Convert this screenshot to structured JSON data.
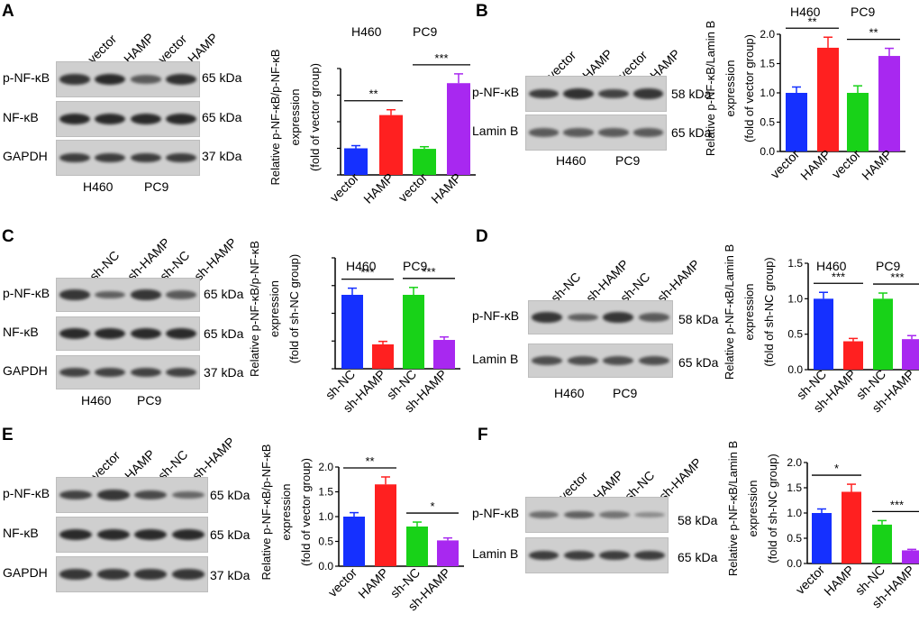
{
  "colors": {
    "blue": "#1530ff",
    "red": "#ff2020",
    "green": "#18d218",
    "purple": "#a828f0"
  },
  "panels": [
    {
      "id": "A",
      "lanes": [
        "vector",
        "HAMP",
        "vector",
        "HAMP"
      ],
      "rows": [
        {
          "label": "p-NF-κB",
          "kda": "65 kDa",
          "intensity": [
            0.9,
            1.0,
            0.6,
            0.95
          ]
        },
        {
          "label": "NF-κB",
          "kda": "65 kDa",
          "intensity": [
            1.0,
            1.0,
            1.0,
            1.0
          ]
        },
        {
          "label": "GAPDH",
          "kda": "37 kDa",
          "intensity": [
            0.85,
            0.85,
            0.85,
            0.85
          ]
        }
      ],
      "cells": [
        "H460",
        "PC9"
      ]
    },
    {
      "id": "B",
      "lanes": [
        "vector",
        "HAMP",
        "vector",
        "HAMP"
      ],
      "rows": [
        {
          "label": "p-NF-κB",
          "kda": "58 kDa",
          "intensity": [
            0.85,
            0.95,
            0.8,
            0.9
          ]
        },
        {
          "label": "Lamin B",
          "kda": "65 kDa",
          "intensity": [
            0.6,
            0.6,
            0.6,
            0.6
          ]
        }
      ],
      "cells": [
        "H460",
        "PC9"
      ]
    },
    {
      "id": "C",
      "lanes": [
        "sh-NC",
        "sh-HAMP",
        "sh-NC",
        "sh-HAMP"
      ],
      "rows": [
        {
          "label": "p-NF-κB",
          "kda": "65 kDa",
          "intensity": [
            0.9,
            0.55,
            0.9,
            0.6
          ]
        },
        {
          "label": "NF-κB",
          "kda": "65 kDa",
          "intensity": [
            1.0,
            1.0,
            1.0,
            1.0
          ]
        },
        {
          "label": "GAPDH",
          "kda": "37 kDa",
          "intensity": [
            0.8,
            0.8,
            0.8,
            0.8
          ]
        }
      ],
      "cells": [
        "H460",
        "PC9"
      ]
    },
    {
      "id": "D",
      "lanes": [
        "sh-NC",
        "sh-HAMP",
        "sh-NC",
        "sh-HAMP"
      ],
      "rows": [
        {
          "label": "p-NF-κB",
          "kda": "58 kDa",
          "intensity": [
            0.9,
            0.55,
            0.9,
            0.6
          ]
        },
        {
          "label": "Lamin B",
          "kda": "65 kDa",
          "intensity": [
            0.7,
            0.7,
            0.7,
            0.7
          ]
        }
      ],
      "cells": [
        "H460",
        "PC9"
      ]
    },
    {
      "id": "E",
      "lanes": [
        "vector",
        "HAMP",
        "sh-NC",
        "sh-HAMP"
      ],
      "rows": [
        {
          "label": "p-NF-κB",
          "kda": "65 kDa",
          "intensity": [
            0.8,
            0.9,
            0.75,
            0.5
          ]
        },
        {
          "label": "NF-κB",
          "kda": "65 kDa",
          "intensity": [
            1.0,
            1.0,
            1.0,
            1.0
          ]
        },
        {
          "label": "GAPDH",
          "kda": "37 kDa",
          "intensity": [
            0.9,
            0.9,
            0.9,
            0.9
          ]
        }
      ],
      "cells": []
    },
    {
      "id": "F",
      "lanes": [
        "vector",
        "HAMP",
        "sh-NC",
        "sh-HAMP"
      ],
      "rows": [
        {
          "label": "p-NF-κB",
          "kda": "58 kDa",
          "intensity": [
            0.45,
            0.55,
            0.4,
            0.2
          ]
        },
        {
          "label": "Lamin B",
          "kda": "65 kDa",
          "intensity": [
            0.85,
            0.85,
            0.85,
            0.85
          ]
        }
      ],
      "cells": []
    }
  ],
  "chart_data": [
    {
      "panel": "A",
      "type": "bar",
      "categories": [
        "vector",
        "HAMP",
        "vector",
        "HAMP"
      ],
      "values": [
        1.0,
        2.25,
        0.98,
        3.45
      ],
      "errors": [
        0.1,
        0.2,
        0.08,
        0.35
      ],
      "colors": [
        "blue",
        "red",
        "green",
        "purple"
      ],
      "ylim": [
        0,
        4
      ],
      "ticks": [],
      "ylabel_lines": [
        "Relative p-NF-κB/p-NF-κB",
        "expression",
        "(fold of vector group)"
      ],
      "groups": [
        "H460",
        "PC9"
      ],
      "sig": [
        {
          "from": 0,
          "to": 1,
          "text": "**"
        },
        {
          "from": 2,
          "to": 3,
          "text": "***"
        }
      ]
    },
    {
      "panel": "B",
      "type": "bar",
      "categories": [
        "vector",
        "HAMP",
        "vector",
        "HAMP"
      ],
      "values": [
        1.0,
        1.77,
        1.0,
        1.63
      ],
      "errors": [
        0.1,
        0.18,
        0.12,
        0.13
      ],
      "colors": [
        "blue",
        "red",
        "green",
        "purple"
      ],
      "ylim": [
        0,
        2.0
      ],
      "ticks": [
        0.0,
        0.5,
        1.0,
        1.5,
        2.0
      ],
      "ylabel_lines": [
        "Relative p-NF-κB/Lamin B",
        "expression",
        "(fold of vector group)"
      ],
      "groups": [
        "H460",
        "PC9"
      ],
      "sig": [
        {
          "from": 0,
          "to": 1,
          "text": "**"
        },
        {
          "from": 2,
          "to": 3,
          "text": "**"
        }
      ]
    },
    {
      "panel": "C",
      "type": "bar",
      "categories": [
        "sh-NC",
        "sh-HAMP",
        "sh-NC",
        "sh-HAMP"
      ],
      "values": [
        1.0,
        0.33,
        1.0,
        0.39
      ],
      "errors": [
        0.09,
        0.04,
        0.1,
        0.04
      ],
      "colors": [
        "blue",
        "red",
        "green",
        "purple"
      ],
      "ylim": [
        0,
        1.5
      ],
      "ticks": [],
      "ylabel_lines": [
        "Relative p-NF-κB/p-NF-κB",
        "expression",
        "(fold of sh-NC group)"
      ],
      "groups": [
        "H460",
        "PC9"
      ],
      "sig": [
        {
          "from": 0,
          "to": 1,
          "text": "***"
        },
        {
          "from": 2,
          "to": 3,
          "text": "***"
        }
      ]
    },
    {
      "panel": "D",
      "type": "bar",
      "categories": [
        "sh-NC",
        "sh-HAMP",
        "sh-NC",
        "sh-HAMP"
      ],
      "values": [
        1.0,
        0.4,
        1.0,
        0.43
      ],
      "errors": [
        0.09,
        0.04,
        0.08,
        0.05
      ],
      "colors": [
        "blue",
        "red",
        "green",
        "purple"
      ],
      "ylim": [
        0,
        1.5
      ],
      "ticks": [
        0.0,
        0.5,
        1.0,
        1.5
      ],
      "ylabel_lines": [
        "Relative p-NF-κB/Lamin B",
        "expression",
        "(fold of sh-NC group)"
      ],
      "groups": [
        "H460",
        "PC9"
      ],
      "sig": [
        {
          "from": 0,
          "to": 1,
          "text": "***"
        },
        {
          "from": 2,
          "to": 3,
          "text": "***"
        }
      ]
    },
    {
      "panel": "E",
      "type": "bar",
      "categories": [
        "vector",
        "HAMP",
        "sh-NC",
        "sh-HAMP"
      ],
      "values": [
        1.0,
        1.65,
        0.8,
        0.52
      ],
      "errors": [
        0.08,
        0.15,
        0.09,
        0.05
      ],
      "colors": [
        "blue",
        "red",
        "green",
        "purple"
      ],
      "ylim": [
        0,
        2.0
      ],
      "ticks": [
        0.0,
        0.5,
        1.0,
        1.5,
        2.0
      ],
      "ylabel_lines": [
        "Relative p-NF-κB/p-NF-κB",
        "expression",
        "(fold of vector group)"
      ],
      "groups": [],
      "sig": [
        {
          "from": 0,
          "to": 1,
          "text": "**"
        },
        {
          "from": 2,
          "to": 3,
          "text": "*"
        }
      ]
    },
    {
      "panel": "F",
      "type": "bar",
      "categories": [
        "vector",
        "HAMP",
        "sh-NC",
        "sh-HAMP"
      ],
      "values": [
        1.0,
        1.42,
        0.77,
        0.26
      ],
      "errors": [
        0.08,
        0.15,
        0.08,
        0.02
      ],
      "colors": [
        "blue",
        "red",
        "green",
        "purple"
      ],
      "ylim": [
        0,
        2.0
      ],
      "ticks": [
        0.0,
        0.5,
        1.0,
        1.5,
        2.0
      ],
      "ylabel_lines": [
        "Relative p-NF-κB/Lamin B",
        "expression",
        "(fold of sh-NC group)"
      ],
      "groups": [],
      "sig": [
        {
          "from": 0,
          "to": 1,
          "text": "*"
        },
        {
          "from": 2,
          "to": 3,
          "text": "***"
        }
      ]
    }
  ]
}
